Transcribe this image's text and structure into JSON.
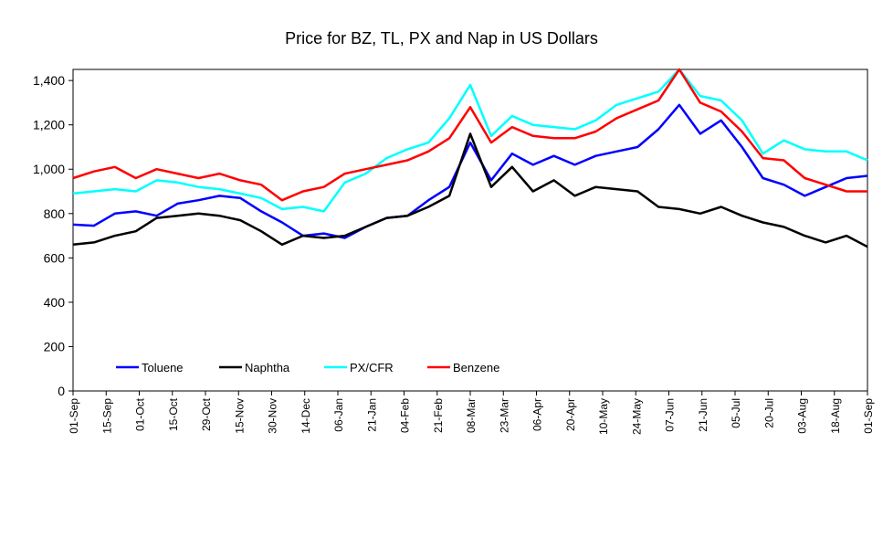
{
  "chart_data": {
    "type": "line",
    "title": "Price for BZ, TL, PX and Nap in US Dollars",
    "xlabel": "",
    "ylabel": "",
    "ylim": [
      0,
      1450
    ],
    "yticks": [
      0,
      200,
      400,
      600,
      800,
      1000,
      1200,
      1400
    ],
    "ytick_labels": [
      "0",
      "200",
      "400",
      "600",
      "800",
      "1,000",
      "1,200",
      "1,400"
    ],
    "x_ticks": [
      "01-Sep",
      "15-Sep",
      "01-Oct",
      "15-Oct",
      "29-Oct",
      "15-Nov",
      "30-Nov",
      "14-Dec",
      "06-Jan",
      "21-Jan",
      "04-Feb",
      "21-Feb",
      "08-Mar",
      "23-Mar",
      "06-Apr",
      "20-Apr",
      "10-May",
      "24-May",
      "07-Jun",
      "21-Jun",
      "05-Jul",
      "20-Jul",
      "03-Aug",
      "18-Aug",
      "01-Sep"
    ],
    "legend_position": "bottom-left inside plot",
    "grid": false,
    "series": [
      {
        "name": "Toluene",
        "color": "#0000ff",
        "values": [
          750,
          745,
          800,
          810,
          790,
          845,
          860,
          880,
          870,
          810,
          760,
          700,
          710,
          690,
          740,
          780,
          790,
          860,
          920,
          1120,
          950,
          1070,
          1020,
          1060,
          1020,
          1060,
          1080,
          1100,
          1180,
          1290,
          1160,
          1220,
          1100,
          960,
          930,
          880,
          920,
          960,
          970
        ]
      },
      {
        "name": "Naphtha",
        "color": "#000000",
        "values": [
          660,
          670,
          700,
          720,
          780,
          790,
          800,
          790,
          770,
          720,
          660,
          700,
          690,
          700,
          740,
          780,
          790,
          830,
          880,
          1160,
          920,
          1010,
          900,
          950,
          880,
          920,
          910,
          900,
          830,
          820,
          800,
          830,
          790,
          760,
          740,
          700,
          670,
          700,
          650
        ]
      },
      {
        "name": "PX/CFR",
        "color": "#00ffff",
        "values": [
          890,
          900,
          910,
          900,
          950,
          940,
          920,
          910,
          890,
          870,
          820,
          830,
          810,
          940,
          980,
          1050,
          1090,
          1120,
          1230,
          1380,
          1150,
          1240,
          1200,
          1190,
          1180,
          1220,
          1290,
          1320,
          1350,
          1450,
          1330,
          1310,
          1220,
          1070,
          1130,
          1090,
          1080,
          1080,
          1040
        ]
      },
      {
        "name": "Benzene",
        "color": "#ff0000",
        "values": [
          960,
          990,
          1010,
          960,
          1000,
          980,
          960,
          980,
          950,
          930,
          860,
          900,
          920,
          980,
          1000,
          1020,
          1040,
          1080,
          1140,
          1280,
          1120,
          1190,
          1150,
          1140,
          1140,
          1170,
          1230,
          1270,
          1310,
          1450,
          1300,
          1260,
          1170,
          1050,
          1040,
          960,
          930,
          900,
          900
        ]
      }
    ]
  }
}
